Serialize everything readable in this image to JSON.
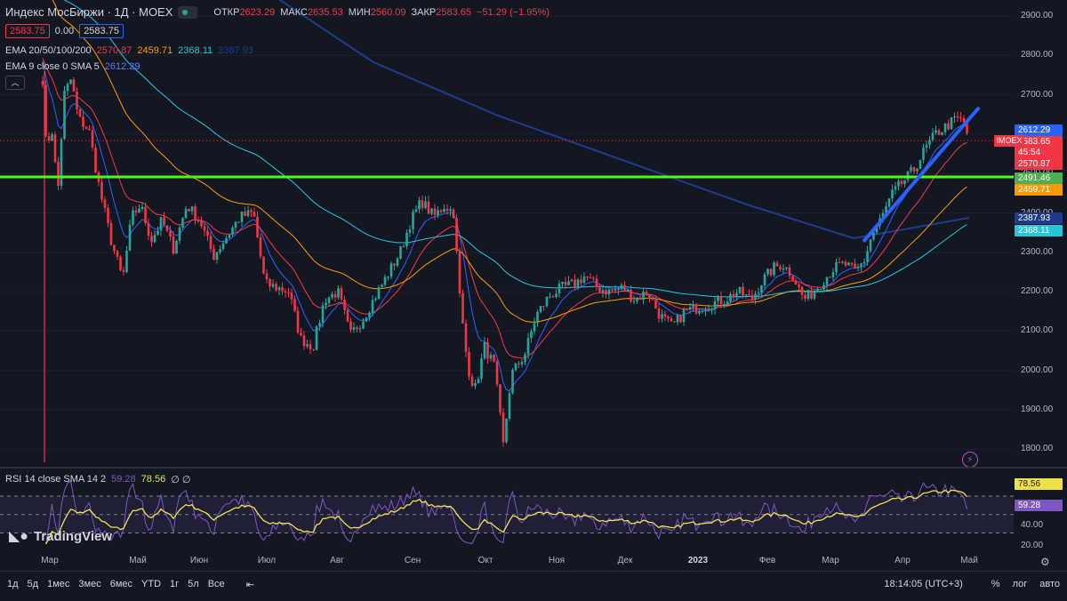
{
  "header": {
    "symbol": "Индекс МосБиржи · 1Д · MOEX",
    "ohlc": {
      "open_label": "ОТКР",
      "open": "2623.29",
      "high_label": "МАКС",
      "high": "2635.53",
      "low_label": "МИН",
      "low": "2560.09",
      "close_label": "ЗАКР",
      "close": "2583.65",
      "change": "−51.29 (−1.95%)"
    },
    "bid": "2583.75",
    "spread": "0.00",
    "ask": "2583.75",
    "ema_name": "EMA 20/50/100/200",
    "ema_values": [
      "2570.87",
      "2459.71",
      "2368.11",
      "2387.93"
    ],
    "ema9_name": "EMA 9 close 0 SMA 5",
    "ema9_value": "2612.29",
    "collapse_icon": "chevron-up-icon"
  },
  "price_axis": {
    "labels": [
      "2900.00",
      "2800.00",
      "2700.00",
      "2600.00",
      "2500.00",
      "2400.00",
      "2300.00",
      "2200.00",
      "2100.00",
      "2000.00",
      "1900.00",
      "1800.00"
    ],
    "tags": [
      {
        "value": "2612.29",
        "color": "#2962ff"
      },
      {
        "value": "2583.65",
        "color": "#f23645"
      },
      {
        "value": "45:54",
        "color": "#f23645"
      },
      {
        "value": "2570.87",
        "color": "#f23645"
      },
      {
        "value": "2491.46",
        "color": "#4caf50"
      },
      {
        "value": "2459.71",
        "color": "#ff9800"
      },
      {
        "value": "2387.93",
        "color": "#1e3a8a"
      },
      {
        "value": "2368.11",
        "color": "#26c6da"
      }
    ],
    "symbol_tag": "IMOEX"
  },
  "rsi": {
    "name": "RSI 14 close SMA 14 2",
    "rsi_value": "59.28",
    "sma_value": "78.56",
    "extra": "∅ ∅",
    "axis_labels": [
      "40.00",
      "20.00"
    ],
    "tags": [
      {
        "value": "78.56",
        "color": "#f0e14a",
        "text": "#131722"
      },
      {
        "value": "59.28",
        "color": "#7e57c2",
        "text": "#ffffff"
      }
    ]
  },
  "time_axis": {
    "labels": [
      {
        "text": "Мар",
        "bold": false
      },
      {
        "text": "Май",
        "bold": false
      },
      {
        "text": "Июн",
        "bold": false
      },
      {
        "text": "Июл",
        "bold": false
      },
      {
        "text": "Авг",
        "bold": false
      },
      {
        "text": "Сен",
        "bold": false
      },
      {
        "text": "Окт",
        "bold": false
      },
      {
        "text": "Ноя",
        "bold": false
      },
      {
        "text": "Дек",
        "bold": false
      },
      {
        "text": "2023",
        "bold": true
      },
      {
        "text": "Фев",
        "bold": false
      },
      {
        "text": "Мар",
        "bold": false
      },
      {
        "text": "Апр",
        "bold": false
      },
      {
        "text": "Май",
        "bold": false
      }
    ]
  },
  "branding": "TradingView",
  "bottom_bar": {
    "ranges": [
      "1д",
      "5д",
      "1мес",
      "3мес",
      "6мес",
      "YTD",
      "1г",
      "5л",
      "Все"
    ],
    "clock": "18:14:05 (UTC+3)",
    "percent": "%",
    "log": "лог",
    "auto": "авто"
  },
  "colors": {
    "up": "#26a69a",
    "down": "#f23645",
    "ema20": "#f23645",
    "ema50": "#ff9800",
    "ema100": "#26c6da",
    "ema200": "#1e3a8a",
    "ema9": "#2962ff",
    "support_line": "#4cff1a",
    "trend_line": "#2962ff"
  }
}
